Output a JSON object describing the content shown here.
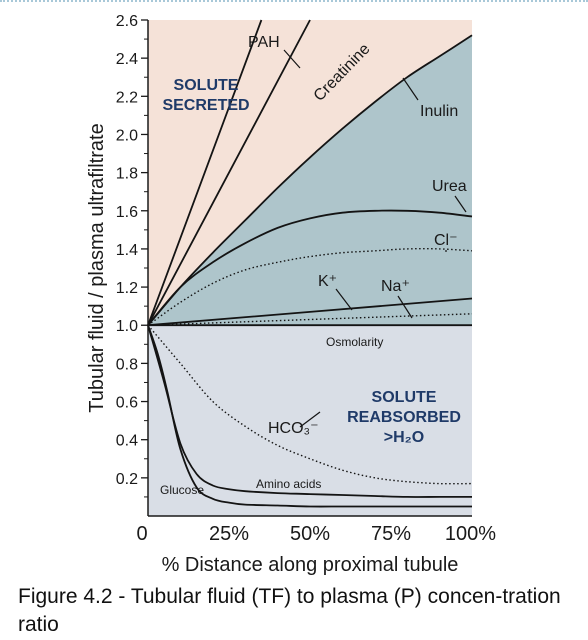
{
  "chart_data": {
    "type": "line",
    "xlabel": "% Distance along proximal tubule",
    "ylabel": "Tubular fluid / plasma ultrafiltrate",
    "xlim": [
      0,
      100
    ],
    "ylim": [
      0,
      2.6
    ],
    "x_ticks": [
      "0",
      "25%",
      "50%",
      "75%",
      "100%"
    ],
    "y_ticks": [
      "0.2",
      "0.4",
      "0.6",
      "0.8",
      "1.0",
      "1.2",
      "1.4",
      "1.6",
      "1.8",
      "2.0",
      "2.2",
      "2.4",
      "2.6"
    ],
    "region_colors": {
      "secreted": "#f5e2d8",
      "reabsorbed_water": "#aec5cb",
      "reabsorbed_solute": "#d9dee6"
    },
    "region_labels": {
      "secreted": [
        "SOLUTE",
        "SECRETED"
      ],
      "reabsorbed": [
        "SOLUTE",
        "REABSORBED",
        ">H₂O"
      ]
    },
    "series": [
      {
        "name": "PAH",
        "style": "solid",
        "x": [
          0,
          35
        ],
        "y": [
          1.0,
          2.6
        ]
      },
      {
        "name": "Creatinine",
        "style": "solid",
        "x": [
          0,
          50
        ],
        "y": [
          1.0,
          2.6
        ]
      },
      {
        "name": "Inulin",
        "style": "solid",
        "x": [
          0,
          10,
          20,
          30,
          40,
          50,
          60,
          70,
          80,
          90,
          100
        ],
        "y": [
          1.0,
          1.2,
          1.38,
          1.55,
          1.72,
          1.88,
          2.03,
          2.17,
          2.3,
          2.41,
          2.52
        ]
      },
      {
        "name": "Urea",
        "style": "solid",
        "x": [
          0,
          10,
          20,
          30,
          40,
          50,
          60,
          70,
          80,
          90,
          100
        ],
        "y": [
          1.0,
          1.2,
          1.33,
          1.43,
          1.51,
          1.56,
          1.59,
          1.6,
          1.6,
          1.59,
          1.57
        ]
      },
      {
        "name": "Cl⁻",
        "style": "dotted",
        "x": [
          0,
          10,
          20,
          30,
          40,
          50,
          60,
          70,
          80,
          90,
          100
        ],
        "y": [
          1.0,
          1.12,
          1.22,
          1.29,
          1.33,
          1.36,
          1.38,
          1.39,
          1.4,
          1.4,
          1.39
        ]
      },
      {
        "name": "K⁺",
        "style": "solid",
        "x": [
          0,
          100
        ],
        "y": [
          1.0,
          1.14
        ]
      },
      {
        "name": "Na⁺",
        "style": "dotted",
        "x": [
          0,
          100
        ],
        "y": [
          1.0,
          1.06
        ]
      },
      {
        "name": "Osmolarity",
        "style": "solid",
        "x": [
          0,
          100
        ],
        "y": [
          1.0,
          1.0
        ]
      },
      {
        "name": "HCO₃⁻",
        "style": "dotted",
        "x": [
          0,
          10,
          20,
          30,
          40,
          50,
          60,
          70,
          80,
          90,
          100
        ],
        "y": [
          1.0,
          0.8,
          0.6,
          0.47,
          0.37,
          0.3,
          0.24,
          0.2,
          0.18,
          0.17,
          0.17
        ]
      },
      {
        "name": "Amino acids",
        "style": "solid",
        "x": [
          0,
          5,
          10,
          15,
          20,
          25,
          30,
          40,
          50,
          60,
          70,
          80,
          90,
          100
        ],
        "y": [
          1.0,
          0.7,
          0.38,
          0.22,
          0.16,
          0.14,
          0.13,
          0.12,
          0.115,
          0.11,
          0.105,
          0.1,
          0.1,
          0.1
        ]
      },
      {
        "name": "Glucose",
        "style": "solid",
        "x": [
          0,
          3,
          6,
          10,
          15,
          20,
          25,
          30,
          40,
          50,
          60,
          70,
          80,
          90,
          100
        ],
        "y": [
          1.0,
          0.85,
          0.65,
          0.35,
          0.15,
          0.09,
          0.07,
          0.06,
          0.055,
          0.05,
          0.05,
          0.05,
          0.05,
          0.05,
          0.05
        ]
      }
    ]
  },
  "caption": "Figure 4.2 - Tubular fluid (TF) to plasma (P) concen-tration ratio"
}
